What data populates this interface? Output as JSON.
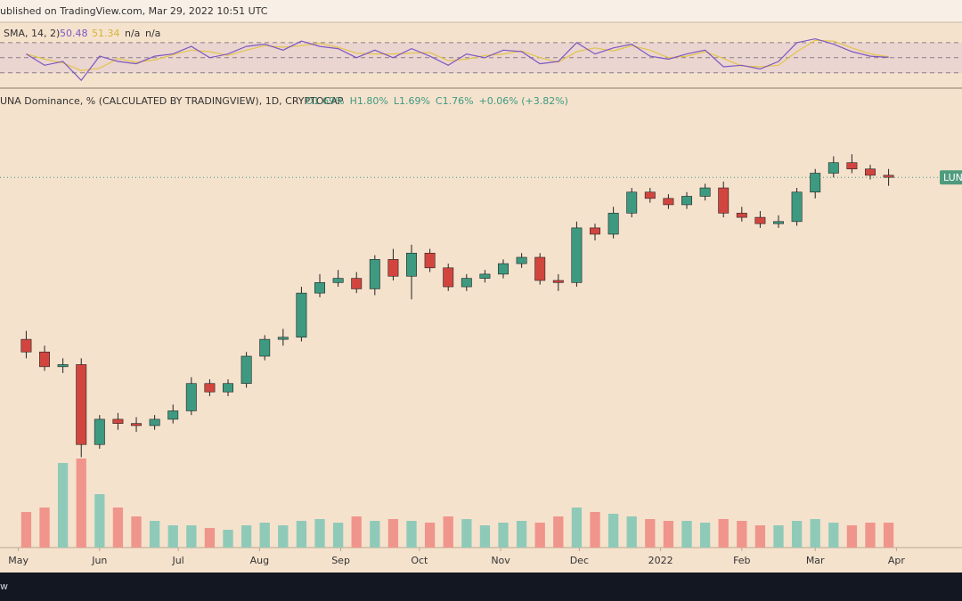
{
  "header": "ublished on TradingView.com, Mar 29, 2022 10:51 UTC",
  "footer": "w",
  "chart_data": {
    "type": "candlestick",
    "legend": {
      "name": "UNA Dominance, % (CALCULATED BY TRADINGVIEW), 1D, CRYPTOCAP",
      "items": [
        "O1.69%",
        "H1.80%",
        "L1.69%",
        "C1.76%",
        "+0.06% (+3.82%)"
      ]
    },
    "price_tag": "LUNA",
    "x": [
      3,
      10,
      17,
      24,
      31,
      38,
      45,
      52,
      59,
      66,
      73,
      80,
      87,
      94,
      101,
      108,
      115,
      122,
      129,
      136,
      143,
      150,
      157,
      164,
      171,
      178,
      185,
      192,
      199,
      206,
      213,
      220,
      227,
      234,
      241,
      248,
      255,
      262,
      269,
      276,
      283,
      290,
      297,
      304,
      311,
      318,
      325,
      332
    ],
    "open": [
      0.99,
      0.93,
      0.86,
      0.87,
      0.49,
      0.61,
      0.59,
      0.58,
      0.61,
      0.65,
      0.78,
      0.74,
      0.78,
      0.91,
      0.99,
      1.0,
      1.21,
      1.26,
      1.28,
      1.23,
      1.37,
      1.29,
      1.4,
      1.33,
      1.24,
      1.28,
      1.3,
      1.35,
      1.38,
      1.27,
      1.26,
      1.52,
      1.49,
      1.59,
      1.69,
      1.66,
      1.63,
      1.67,
      1.71,
      1.59,
      1.57,
      1.54,
      1.55,
      1.69,
      1.78,
      1.83,
      1.8,
      1.77
    ],
    "high": [
      1.03,
      0.96,
      0.9,
      0.9,
      0.63,
      0.64,
      0.62,
      0.63,
      0.68,
      0.81,
      0.8,
      0.8,
      0.93,
      1.01,
      1.04,
      1.24,
      1.3,
      1.32,
      1.31,
      1.39,
      1.42,
      1.44,
      1.42,
      1.35,
      1.3,
      1.32,
      1.37,
      1.4,
      1.4,
      1.3,
      1.55,
      1.54,
      1.62,
      1.71,
      1.71,
      1.68,
      1.69,
      1.73,
      1.74,
      1.62,
      1.6,
      1.58,
      1.71,
      1.8,
      1.86,
      1.87,
      1.82,
      1.8
    ],
    "low": [
      0.9,
      0.84,
      0.83,
      0.43,
      0.47,
      0.56,
      0.55,
      0.56,
      0.59,
      0.63,
      0.72,
      0.72,
      0.76,
      0.89,
      0.96,
      0.98,
      1.19,
      1.24,
      1.21,
      1.2,
      1.27,
      1.18,
      1.31,
      1.22,
      1.22,
      1.26,
      1.28,
      1.33,
      1.25,
      1.22,
      1.24,
      1.46,
      1.47,
      1.57,
      1.64,
      1.61,
      1.61,
      1.65,
      1.57,
      1.55,
      1.52,
      1.52,
      1.53,
      1.66,
      1.76,
      1.78,
      1.75,
      1.72
    ],
    "close": [
      0.93,
      0.86,
      0.87,
      0.49,
      0.61,
      0.59,
      0.58,
      0.61,
      0.65,
      0.78,
      0.74,
      0.78,
      0.91,
      0.99,
      1.0,
      1.21,
      1.26,
      1.28,
      1.23,
      1.37,
      1.29,
      1.4,
      1.33,
      1.24,
      1.28,
      1.3,
      1.35,
      1.38,
      1.27,
      1.26,
      1.52,
      1.49,
      1.59,
      1.69,
      1.66,
      1.63,
      1.67,
      1.71,
      1.59,
      1.57,
      1.54,
      1.55,
      1.69,
      1.78,
      1.83,
      1.8,
      1.77,
      1.76
    ],
    "volume": [
      40,
      45,
      95,
      100,
      60,
      45,
      35,
      30,
      25,
      25,
      22,
      20,
      25,
      28,
      25,
      30,
      32,
      28,
      35,
      30,
      32,
      30,
      28,
      35,
      32,
      25,
      28,
      30,
      28,
      35,
      45,
      40,
      38,
      35,
      32,
      30,
      30,
      28,
      32,
      30,
      25,
      25,
      30,
      32,
      28,
      25,
      28,
      28
    ],
    "up_color": "#3d9a80",
    "down_color": "#d2453f",
    "volume_up_color": "#8fcab9",
    "volume_down_color": "#f0958c",
    "xlim": [
      -7,
      360
    ],
    "ylim": [
      0,
      2.18
    ],
    "volume_ylim": [
      0,
      130
    ],
    "xticks": [
      {
        "value": 0,
        "label": "May"
      },
      {
        "value": 31,
        "label": "Jun"
      },
      {
        "value": 61,
        "label": "Jul"
      },
      {
        "value": 92,
        "label": "Aug"
      },
      {
        "value": 123,
        "label": "Sep"
      },
      {
        "value": 153,
        "label": "Oct"
      },
      {
        "value": 184,
        "label": "Nov"
      },
      {
        "value": 214,
        "label": "Dec"
      },
      {
        "value": 245,
        "label": "2022"
      },
      {
        "value": 276,
        "label": "Feb"
      },
      {
        "value": 304,
        "label": "Mar"
      },
      {
        "value": 335,
        "label": "Apr"
      }
    ],
    "rsi": {
      "label": "SMA, 14, 2)",
      "rsi_value": 50.48,
      "sma_value": 51.34,
      "na_1": "n/a",
      "na_2": "n/a",
      "rsi_color": "#7e57c2",
      "sma_color": "#e2c44a",
      "ylim": [
        12,
        97
      ],
      "levels": [
        70,
        50,
        30
      ],
      "values": [
        55,
        40,
        45,
        20,
        52,
        45,
        42,
        52,
        55,
        65,
        50,
        55,
        65,
        68,
        60,
        72,
        65,
        62,
        50,
        60,
        50,
        62,
        52,
        40,
        55,
        50,
        60,
        58,
        42,
        45,
        70,
        55,
        63,
        68,
        52,
        48,
        55,
        60,
        38,
        40,
        35,
        45,
        70,
        75,
        68,
        58,
        52,
        50.48
      ],
      "sma": [
        55,
        48,
        43,
        33,
        36,
        49,
        44,
        47,
        54,
        60,
        58,
        53,
        60,
        66,
        64,
        66,
        69,
        64,
        56,
        55,
        55,
        56,
        57,
        46,
        48,
        53,
        55,
        59,
        50,
        44,
        58,
        63,
        59,
        66,
        60,
        50,
        52,
        58,
        49,
        39,
        38,
        40,
        58,
        73,
        72,
        63,
        55,
        51.34
      ]
    }
  }
}
